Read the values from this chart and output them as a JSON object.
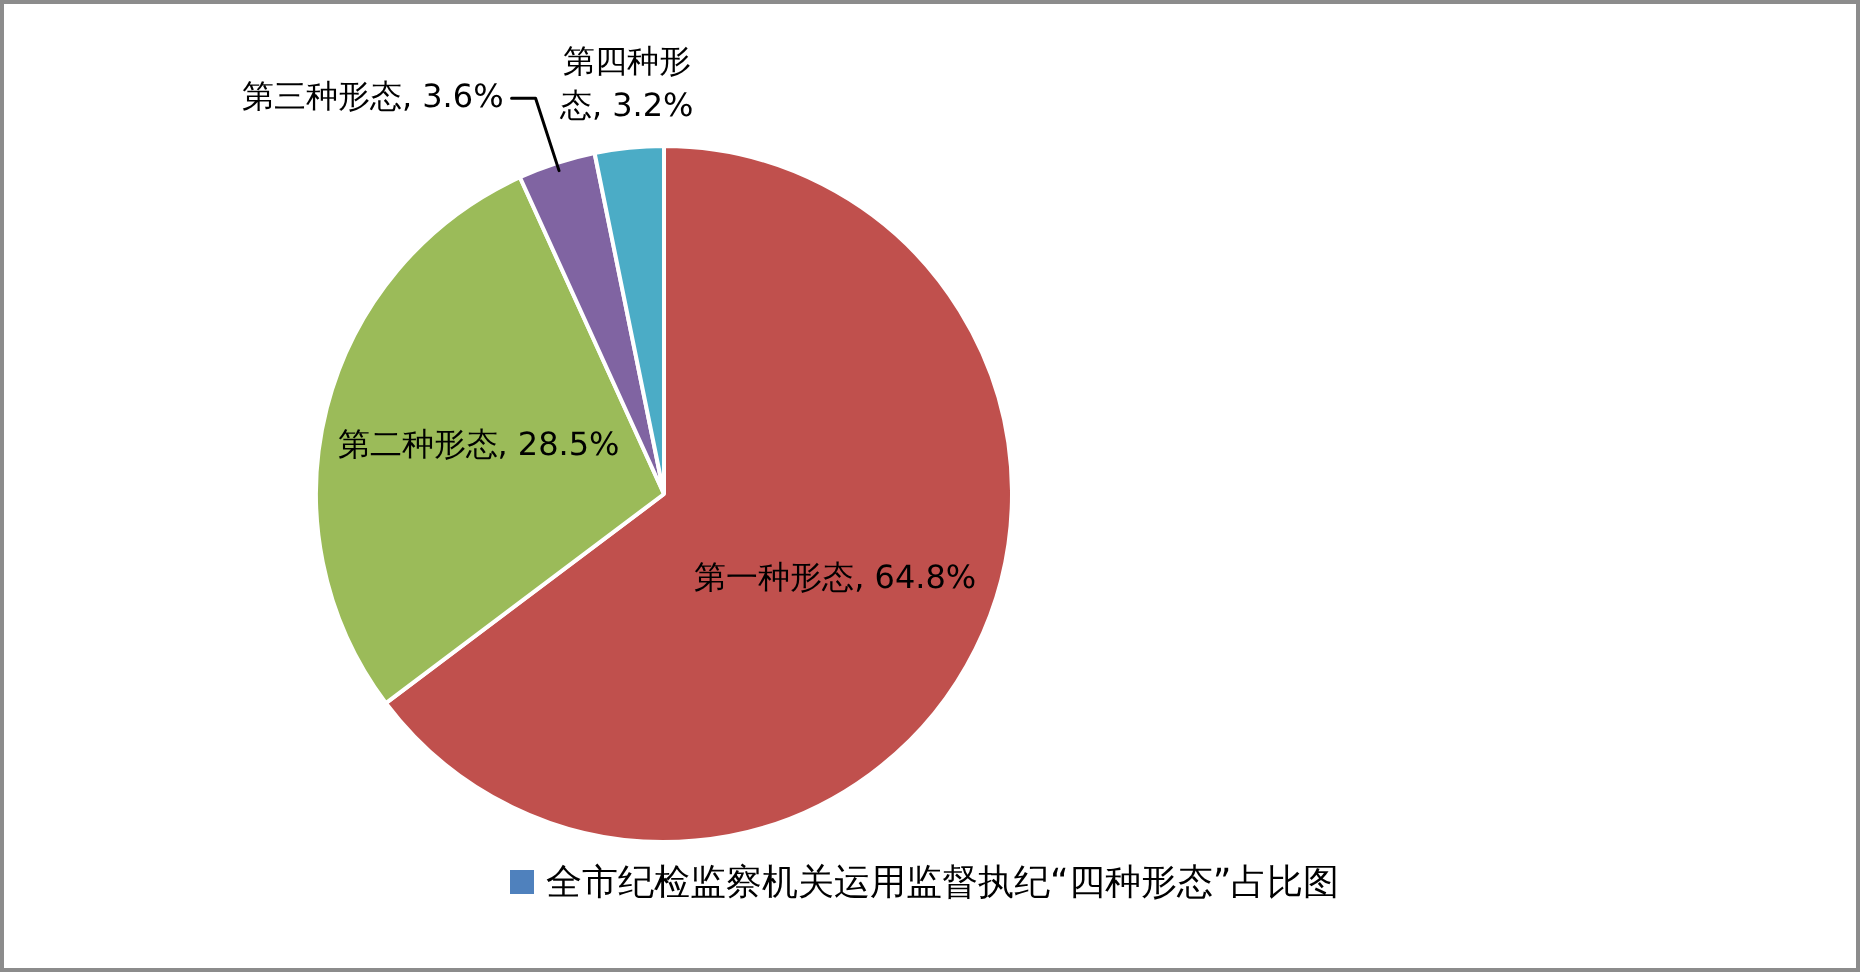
{
  "chart_data": {
    "type": "pie",
    "categories": [
      "第一种形态",
      "第二种形态",
      "第三种形态",
      "第四种形态"
    ],
    "series": [
      {
        "name": "全市纪检监察机关运用监督执纪“四种形态”占比图",
        "color": "#4f81bd",
        "values": [
          64.8,
          28.5,
          3.6,
          3.2
        ]
      }
    ],
    "colors": [
      "#c0504d",
      "#9bbb59",
      "#8064a2",
      "#4bacc6"
    ],
    "value_labels": [
      ", 64.8%",
      ", 28.5%",
      ", 3.6%",
      ", 3.2%"
    ],
    "legend": "bottom"
  }
}
